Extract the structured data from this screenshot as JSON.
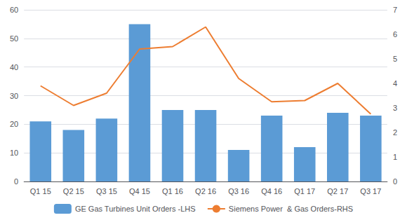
{
  "chart_data": {
    "type": "bar",
    "categories": [
      "Q1 15",
      "Q2 15",
      "Q3 15",
      "Q4 15",
      "Q1 16",
      "Q2 16",
      "Q3 16",
      "Q4 16",
      "Q1 17",
      "Q2 17",
      "Q3 17"
    ],
    "series": [
      {
        "name": "GE Gas Turbines Unit Orders -LHS",
        "type": "bar",
        "color": "#5b9bd5",
        "values": [
          21,
          18,
          22,
          55,
          25,
          25,
          11,
          23,
          12,
          24,
          23
        ]
      },
      {
        "name": "Siemens Power  & Gas Orders-RHS",
        "type": "line",
        "color": "#ed7d31",
        "axis": "y2",
        "values": [
          3.9,
          3.1,
          3.6,
          5.4,
          5.5,
          6.3,
          4.2,
          3.25,
          3.3,
          4.0,
          2.75
        ]
      }
    ],
    "ylim": [
      0,
      60
    ],
    "yticks": [
      0,
      10,
      20,
      30,
      40,
      50,
      60
    ],
    "y2lim": [
      0,
      7
    ],
    "y2ticks": [
      0,
      1,
      2,
      3,
      4,
      5,
      6,
      7
    ],
    "grid": true,
    "legend": "bottom"
  }
}
